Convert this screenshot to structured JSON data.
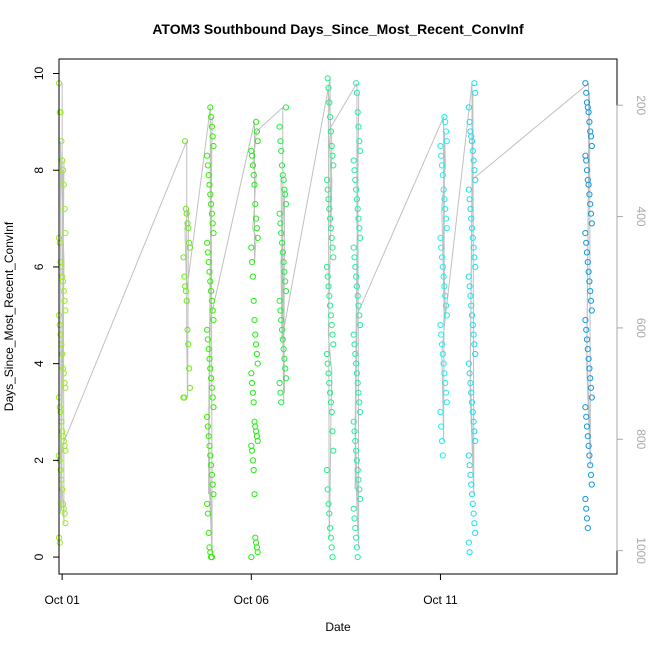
{
  "chart_data": {
    "type": "scatter",
    "title": "ATOM3 Southbound Days_Since_Most_Recent_ConvInf",
    "xlabel": "Date",
    "ylabel": "Days_Since_Most_Recent_ConvInf",
    "x_axis_kind": "date",
    "xlim": [
      "2020-09-30T22:00",
      "2020-10-15T16:00"
    ],
    "x_ticks": [
      {
        "value": "2020-10-01",
        "label": "Oct 01"
      },
      {
        "value": "2020-10-06",
        "label": "Oct 06"
      },
      {
        "value": "2020-10-11",
        "label": "Oct 11"
      }
    ],
    "ylim": [
      -0.35,
      10.3
    ],
    "y_ticks": [
      0,
      2,
      4,
      6,
      8,
      10
    ],
    "y2_ticks": [
      200,
      400,
      600,
      800,
      1000
    ],
    "y2lim": [
      1042,
      117
    ],
    "y2_color": "#a9a9a9",
    "grid": false,
    "legend": "none",
    "line_color": "#c0c0c0",
    "point_series": [
      {
        "date": "2020-10-01T00:00",
        "color": "#99ee22",
        "values": [
          9.8,
          9.2,
          9.2,
          8.6,
          8.2,
          8.0,
          7.7,
          7.2,
          6.7,
          6.6,
          6.5,
          6.1,
          6.0,
          5.8,
          5.7,
          5.5,
          5.3,
          5.1,
          5.0,
          4.8,
          4.6,
          4.4,
          4.2,
          3.9,
          3.8,
          3.6,
          3.5,
          3.3,
          3.1,
          3.0,
          2.8,
          2.6,
          2.5,
          2.4,
          2.3,
          2.2,
          2.1,
          2.0,
          1.8,
          1.6,
          1.4,
          1.1,
          1.0,
          0.9,
          0.7,
          0.4,
          0.3
        ]
      },
      {
        "date": "2020-10-04T07:00",
        "color": "#66ee11",
        "values": [
          8.6,
          7.2,
          7.1,
          6.9,
          6.8,
          6.5,
          6.4,
          6.2,
          5.8,
          5.6,
          5.5,
          5.3,
          4.7,
          4.4,
          3.9,
          3.5,
          3.3,
          3.3
        ]
      },
      {
        "date": "2020-10-04T22:00",
        "color": "#33ee00",
        "values": [
          9.3,
          9.1,
          8.9,
          8.7,
          8.5,
          8.3,
          8.1,
          7.9,
          7.7,
          7.5,
          7.3,
          7.1,
          6.9,
          6.7,
          6.5,
          6.3,
          6.1,
          5.9,
          5.7,
          5.5,
          5.3,
          5.1,
          4.9,
          4.7,
          4.5,
          4.3,
          4.1,
          3.9,
          3.7,
          3.5,
          3.3,
          3.1,
          2.9,
          2.7,
          2.5,
          2.3,
          2.1,
          1.9,
          1.7,
          1.5,
          1.3,
          1.1,
          0.9,
          0.5,
          0.2,
          0.1,
          0.0,
          0.0
        ]
      },
      {
        "date": "2020-10-06T02:00",
        "color": "#22ee11",
        "values": [
          9.0,
          8.8,
          8.6,
          8.4,
          8.3,
          8.1,
          7.9,
          7.7,
          7.3,
          7.0,
          6.8,
          6.6,
          6.4,
          6.1,
          5.8,
          5.3,
          4.9,
          4.6,
          4.4,
          4.2,
          4.0,
          3.8,
          3.6,
          3.4,
          3.2,
          2.8,
          2.7,
          2.6,
          2.5,
          2.4,
          2.3,
          2.2,
          2.0,
          1.8,
          1.3,
          0.4,
          0.3,
          0.2,
          0.1,
          0.0
        ]
      },
      {
        "date": "2020-10-06T20:00",
        "color": "#22ee44",
        "values": [
          9.3,
          8.9,
          8.6,
          8.4,
          8.1,
          7.9,
          7.8,
          7.6,
          7.5,
          7.3,
          7.1,
          6.9,
          6.7,
          6.5,
          6.3,
          6.1,
          5.9,
          5.7,
          5.5,
          5.3,
          5.1,
          4.9,
          4.7,
          4.5,
          4.3,
          4.1,
          3.9,
          3.7,
          3.6,
          3.4,
          3.2
        ]
      },
      {
        "date": "2020-10-08T02:00",
        "color": "#22ee88",
        "values": [
          9.9,
          9.7,
          9.4,
          9.1,
          8.8,
          8.5,
          8.3,
          8.1,
          7.8,
          7.6,
          7.4,
          7.2,
          7.0,
          6.8,
          6.6,
          6.4,
          6.2,
          6.0,
          5.8,
          5.6,
          5.4,
          5.2,
          5.0,
          4.8,
          4.6,
          4.4,
          4.2,
          4.0,
          3.8,
          3.6,
          3.4,
          3.2,
          3.0,
          2.6,
          2.2,
          1.8,
          1.4,
          1.1,
          0.9,
          0.6,
          0.4,
          0.2,
          0.0
        ]
      },
      {
        "date": "2020-10-08T19:00",
        "color": "#22eeaa",
        "values": [
          9.8,
          9.6,
          9.2,
          8.9,
          8.6,
          8.4,
          8.2,
          8.0,
          7.8,
          7.6,
          7.4,
          7.2,
          7.0,
          6.8,
          6.6,
          6.4,
          6.2,
          6.0,
          5.8,
          5.6,
          5.4,
          5.2,
          5.0,
          4.8,
          4.6,
          4.4,
          4.2,
          4.0,
          3.8,
          3.6,
          3.4,
          3.2,
          3.0,
          2.8,
          2.6,
          2.4,
          2.2,
          2.0,
          1.8,
          1.6,
          1.4,
          1.2,
          1.0,
          0.8,
          0.6,
          0.4,
          0.2,
          0.0
        ]
      },
      {
        "date": "2020-10-11T02:00",
        "color": "#22eeee",
        "values": [
          9.1,
          9.0,
          8.8,
          8.6,
          8.5,
          8.3,
          8.1,
          7.9,
          7.6,
          7.4,
          7.2,
          7.0,
          6.8,
          6.6,
          6.4,
          6.2,
          6.0,
          5.8,
          5.6,
          5.4,
          5.2,
          5.0,
          4.8,
          4.6,
          4.4,
          4.2,
          4.0,
          3.8,
          3.6,
          3.4,
          3.2,
          3.0,
          2.7,
          2.4,
          2.1
        ]
      },
      {
        "date": "2020-10-11T20:00",
        "color": "#22ddee",
        "values": [
          9.8,
          9.6,
          9.3,
          9.0,
          8.8,
          8.7,
          8.6,
          8.4,
          8.2,
          8.0,
          7.8,
          7.6,
          7.4,
          7.2,
          7.0,
          6.8,
          6.6,
          6.4,
          6.2,
          6.0,
          5.8,
          5.6,
          5.4,
          5.2,
          5.0,
          4.8,
          4.6,
          4.4,
          4.2,
          4.0,
          3.8,
          3.6,
          3.4,
          3.2,
          3.0,
          2.8,
          2.6,
          2.4,
          2.1,
          1.9,
          1.7,
          1.5,
          1.3,
          1.1,
          0.9,
          0.7,
          0.5,
          0.3,
          0.1
        ]
      },
      {
        "date": "2020-10-14T22:00",
        "color": "#1199dd",
        "values": [
          9.8,
          9.6,
          9.4,
          9.3,
          9.2,
          9.0,
          8.8,
          8.7,
          8.5,
          8.3,
          8.2,
          8.0,
          7.8,
          7.7,
          7.5,
          7.3,
          7.1,
          6.9,
          6.7,
          6.5,
          6.3,
          6.1,
          5.9,
          5.7,
          5.5,
          5.3,
          5.1,
          4.9,
          4.7,
          4.5,
          4.3,
          4.1,
          3.9,
          3.7,
          3.5,
          3.3,
          3.1,
          2.9,
          2.7,
          2.5,
          2.3,
          2.1,
          1.9,
          1.7,
          1.5,
          1.2,
          1.0,
          0.8,
          0.6
        ]
      }
    ]
  }
}
